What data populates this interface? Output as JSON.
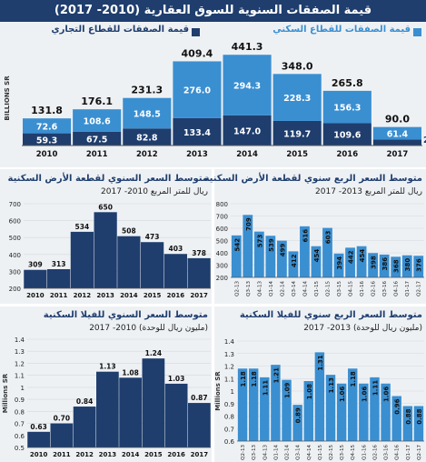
{
  "title": "قيمة الصفقات السنوية للسوق العقارية (2010- 2017)",
  "colors": {
    "navy": "#1f3e6e",
    "light_blue": "#3a8fd1",
    "panel_bg": "#eef1f4"
  },
  "chart_data": [
    {
      "id": "main",
      "type": "bar",
      "stacked": true,
      "ylabel": "BILLIONS SR",
      "categories": [
        "2010",
        "2011",
        "2012",
        "2013",
        "2014",
        "2015",
        "2016",
        "2017"
      ],
      "series": [
        {
          "name": "قيمة الصفقات للقطاع التجاري",
          "values": [
            59.3,
            67.5,
            82.8,
            133.4,
            147.0,
            119.7,
            109.6,
            28.6
          ]
        },
        {
          "name": "قيمة الصفقات للقطاع السكني",
          "values": [
            72.6,
            108.6,
            148.5,
            276.0,
            294.3,
            228.3,
            156.3,
            61.4
          ]
        }
      ],
      "totals": [
        131.8,
        176.1,
        231.3,
        409.4,
        441.3,
        348.0,
        265.8,
        90.0
      ],
      "bottom_labels": [
        "59.3",
        "67.5",
        "82.8",
        "133.4",
        "147.0",
        "119.7",
        "109.6",
        "28.6"
      ],
      "top_labels": [
        "72.6",
        "108.6",
        "148.5",
        "276.0",
        "294.3",
        "228.3",
        "156.3",
        "61.4"
      ],
      "total_labels": [
        "131.8",
        "176.1",
        "231.3",
        "409.4",
        "441.3",
        "348.0",
        "265.8",
        "90.0"
      ],
      "ylim": [
        0,
        460
      ]
    },
    {
      "id": "land_annual",
      "type": "bar",
      "title": "متوسط السعر السنوي لقطعة الأرض السكنية",
      "subtitle": "ريال للمتر المربع 2010- 2017",
      "categories": [
        "2010",
        "2011",
        "2012",
        "2013",
        "2014",
        "2015",
        "2016",
        "2017"
      ],
      "values": [
        309,
        313,
        534,
        650,
        508,
        473,
        403,
        378
      ],
      "value_labels": [
        "309",
        "313",
        "534",
        "650",
        "508",
        "473",
        "403",
        "378"
      ],
      "highlight": [
        3
      ],
      "yticks": [
        "200",
        "300",
        "400",
        "500",
        "600",
        "700"
      ],
      "ylim": [
        200,
        700
      ]
    },
    {
      "id": "land_quarterly",
      "type": "bar",
      "title": "متوسط السعر الربع سنوي لقطعة الأرض السكنية",
      "subtitle": "ريال للمتر المربع 2013- 2017",
      "categories": [
        "Q2-13",
        "Q3-13",
        "Q4-13",
        "Q1-14",
        "Q2-14",
        "Q3-14",
        "Q4-14",
        "Q1-15",
        "Q2-15",
        "Q3-15",
        "Q4-15",
        "Q1-16",
        "Q2-16",
        "Q3-16",
        "Q4-16",
        "Q1-17",
        "Q2-17"
      ],
      "values": [
        542,
        709,
        573,
        539,
        499,
        412,
        616,
        454,
        603,
        394,
        442,
        454,
        398,
        386,
        368,
        380,
        376
      ],
      "value_labels": [
        "542",
        "709",
        "573",
        "539",
        "499",
        "412",
        "616",
        "454",
        "603",
        "394",
        "442",
        "454",
        "398",
        "386",
        "368",
        "380",
        "376"
      ],
      "yticks": [
        "200",
        "300",
        "400",
        "500",
        "600",
        "700",
        "800"
      ],
      "ylim": [
        200,
        800
      ]
    },
    {
      "id": "villa_annual",
      "type": "bar",
      "title": "متوسط السعر السنوي للفيلا السكنية",
      "subtitle": "(مليون ريال للوحدة) 2010- 2017",
      "ylabel": "Millions SR",
      "categories": [
        "2010",
        "2011",
        "2012",
        "2013",
        "2014",
        "2015",
        "2016",
        "2017"
      ],
      "values": [
        0.63,
        0.7,
        0.84,
        1.13,
        1.08,
        1.24,
        1.03,
        0.87
      ],
      "value_labels": [
        "0.63",
        "0.70",
        "0.84",
        "1.13",
        "1.08",
        "1.24",
        "1.03",
        "0.87"
      ],
      "highlight": [
        5
      ],
      "yticks": [
        "0.5",
        "0.6",
        "0.7",
        "0.8",
        "0.9",
        "1",
        "1.1",
        "1.2",
        "1.3",
        "1.4"
      ],
      "ylim": [
        0.5,
        1.4
      ]
    },
    {
      "id": "villa_quarterly",
      "type": "bar",
      "title": "متوسط السعر الربع سنوي للفيلا السكنية",
      "subtitle": "(مليون ريال للوحدة) 2013- 2017",
      "ylabel": "Millions SR",
      "categories": [
        "Q2-13",
        "Q3-13",
        "Q4-13",
        "Q1-14",
        "Q2-14",
        "Q3-14",
        "Q4-14",
        "Q1-15",
        "Q2-15",
        "Q3-15",
        "Q4-15",
        "Q1-16",
        "Q2-16",
        "Q3-16",
        "Q4-16",
        "Q1-17",
        "Q2-17"
      ],
      "values": [
        1.18,
        1.18,
        1.11,
        1.21,
        1.09,
        0.89,
        1.08,
        1.31,
        1.13,
        1.06,
        1.18,
        1.06,
        1.11,
        1.06,
        0.96,
        0.88,
        0.88
      ],
      "value_labels": [
        "1.18",
        "1.18",
        "1.11",
        "1.21",
        "1.09",
        "0.89",
        "1.08",
        "1.31",
        "1.13",
        "1.06",
        "1.18",
        "1.06",
        "1.11",
        "1.06",
        "0.96",
        "0.88",
        "0.88"
      ],
      "yticks": [
        "0.6",
        "0.7",
        "0.8",
        "0.9",
        "1",
        "1.1",
        "1.2",
        "1.3",
        "1.4"
      ],
      "ylim": [
        0.6,
        1.4
      ]
    }
  ]
}
